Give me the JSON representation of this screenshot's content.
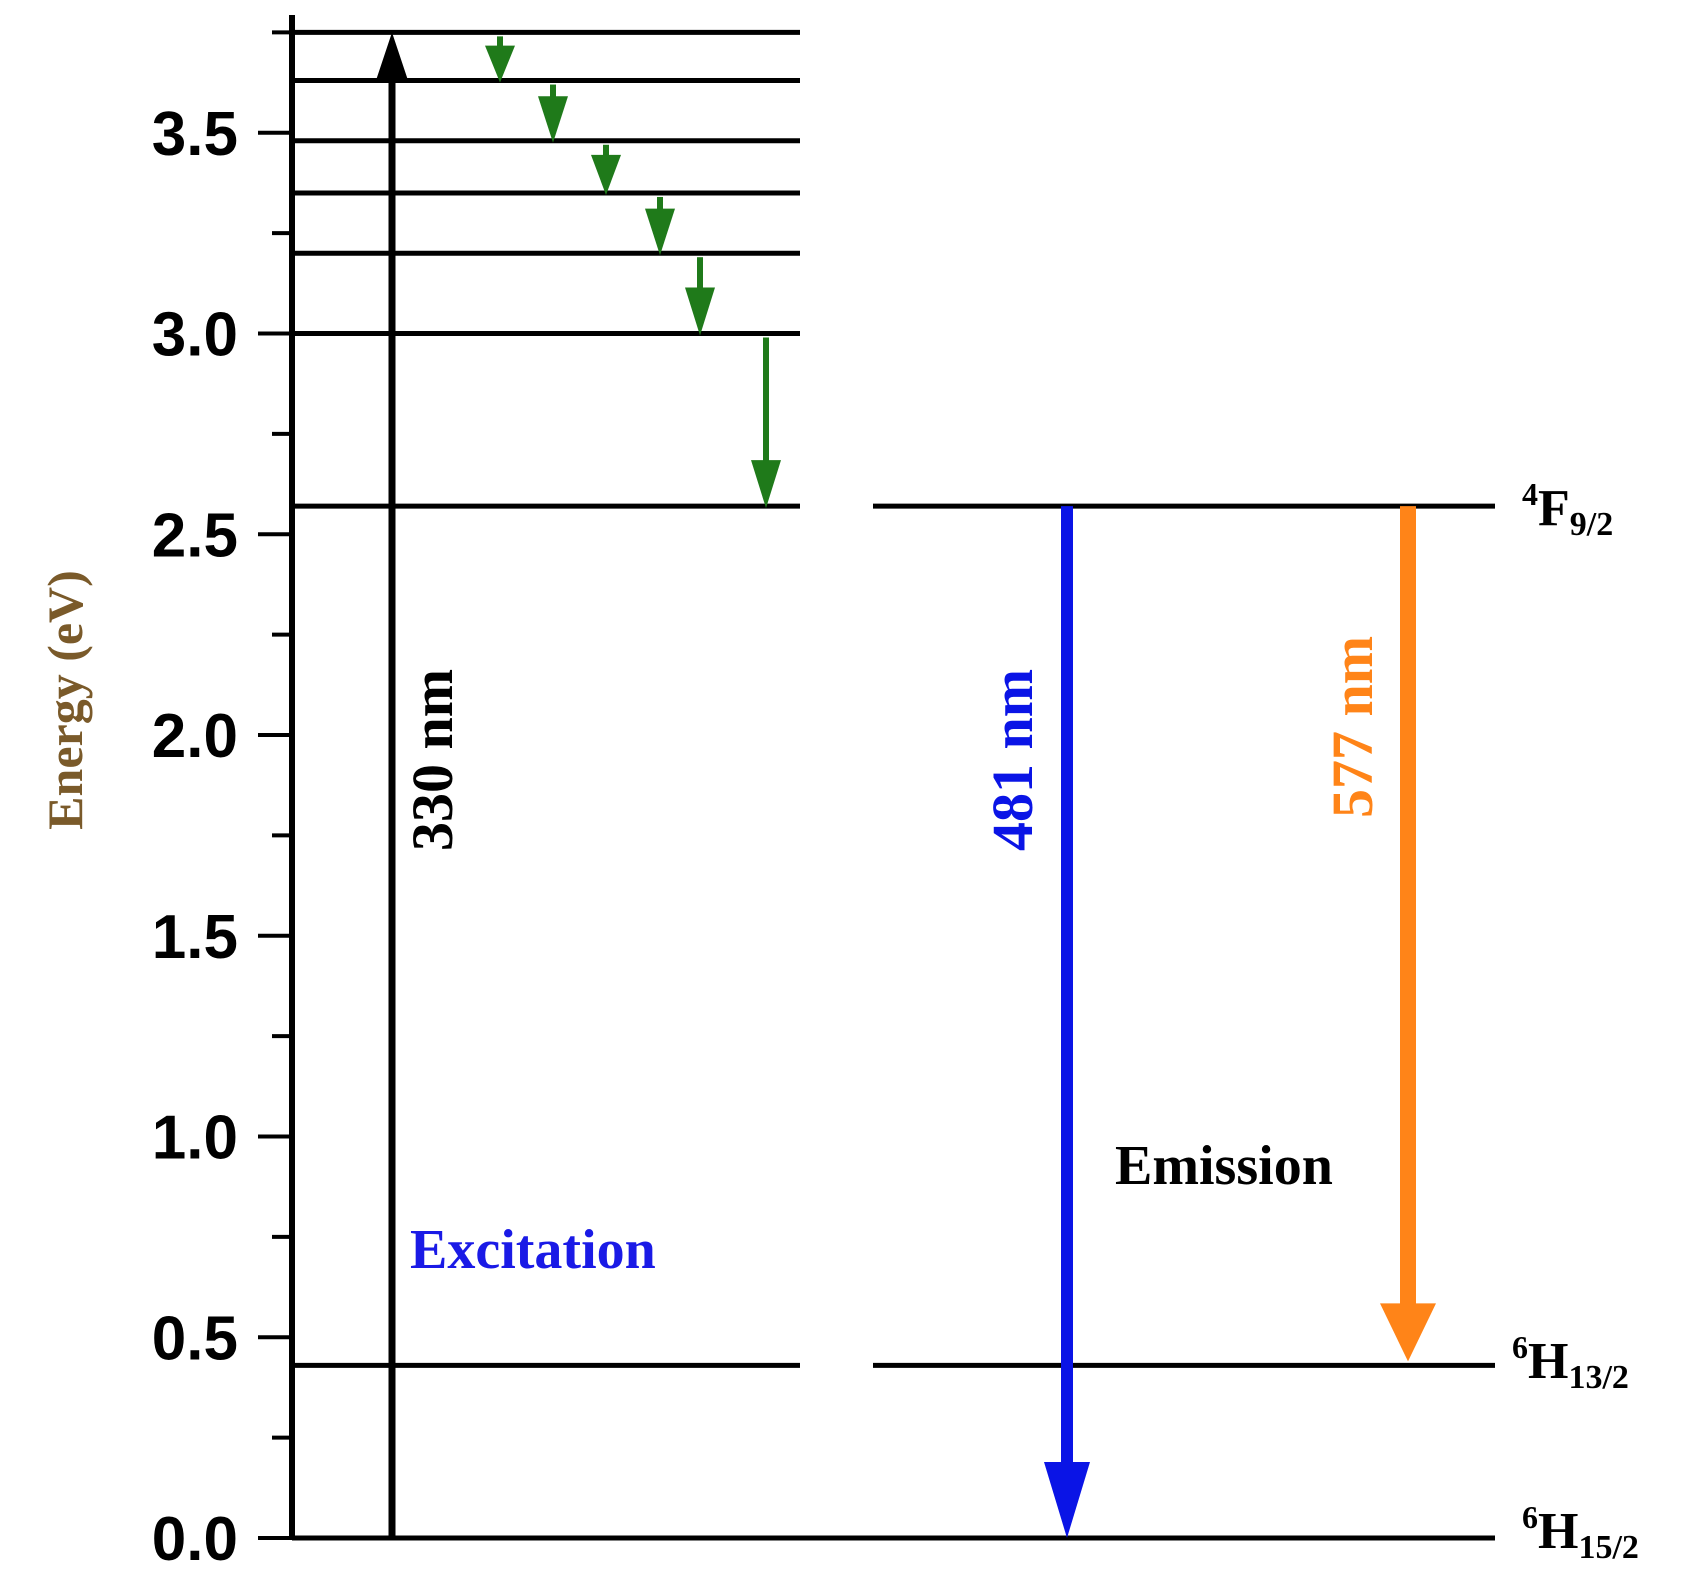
{
  "axis": {
    "title": "Energy (eV)",
    "title_color": "#7a5a2a",
    "range": [
      0,
      3.75
    ],
    "major_ticks": [
      0.0,
      0.5,
      1.0,
      1.5,
      2.0,
      2.5,
      3.0,
      3.5
    ],
    "tick_labels": [
      "0.0",
      "0.5",
      "1.0",
      "1.5",
      "2.0",
      "2.5",
      "3.0",
      "3.5"
    ],
    "minor_step": 0.25
  },
  "levels": {
    "upper_stack": [
      3.75,
      3.63,
      3.48,
      3.35,
      3.2,
      3.0
    ],
    "f92": 2.57,
    "h132": 0.43,
    "h152": 0.0
  },
  "state_labels": {
    "f92": {
      "main": "F",
      "sup": "4",
      "sub": "9/2"
    },
    "h132": {
      "main": "H",
      "sup": "6",
      "sub": "13/2"
    },
    "h152": {
      "main": "H",
      "sup": "6",
      "sub": "15/2"
    }
  },
  "transitions": {
    "excitation": {
      "label": "330 nm",
      "color": "#000000",
      "from": 0.0,
      "to": 3.75
    },
    "blue_emission": {
      "label": "481 nm",
      "color": "#0a14e6",
      "from": 2.57,
      "to": 0.0
    },
    "orange_emission": {
      "label": "577 nm",
      "color": "#ff8418",
      "from": 2.57,
      "to": 0.43
    },
    "relaxation_color": "#1f7a1a"
  },
  "captions": {
    "excitation": {
      "text": "Excitation",
      "color": "#1a1ae6"
    },
    "emission": {
      "text": "Emission",
      "color": "#000000"
    }
  }
}
